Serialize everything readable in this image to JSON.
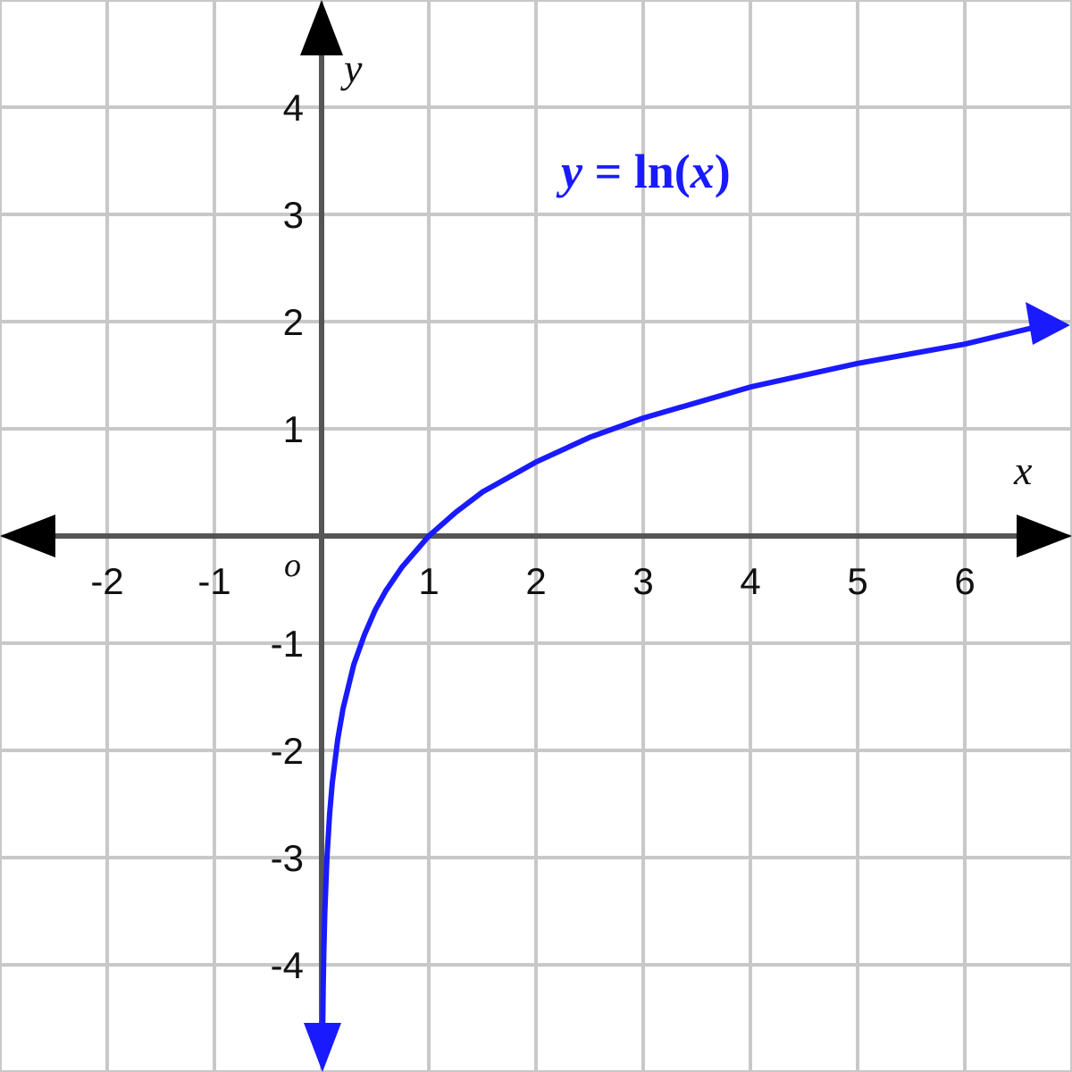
{
  "chart_data": {
    "type": "line",
    "xlim": [
      -3,
      7
    ],
    "ylim": [
      -5,
      5
    ],
    "grid": true,
    "x_ticks": [
      "-2",
      "-1",
      "1",
      "2",
      "3",
      "4",
      "5",
      "6"
    ],
    "x_tick_values": [
      -2,
      -1,
      1,
      2,
      3,
      4,
      5,
      6
    ],
    "y_ticks": [
      "4",
      "3",
      "2",
      "1",
      "-1",
      "-2",
      "-3",
      "-4"
    ],
    "y_tick_values": [
      4,
      3,
      2,
      1,
      -1,
      -2,
      -3,
      -4
    ],
    "origin_label": "o",
    "xlabel": "x",
    "ylabel": "y",
    "annotation": {
      "y": "y",
      "eq": " = ln(",
      "x": "x",
      "close": ")"
    },
    "colors": {
      "curve": "#1a1aff",
      "axes": "#555555",
      "grid": "#c8c8c8"
    },
    "series": [
      {
        "x": [
          0.0067,
          0.01,
          0.015,
          0.02,
          0.03,
          0.05,
          0.075,
          0.1,
          0.15,
          0.2,
          0.3,
          0.4,
          0.5,
          0.6,
          0.75,
          1,
          1.25,
          1.5,
          2,
          2.5,
          3,
          4,
          5,
          6,
          7
        ],
        "y": [
          -5.0,
          -4.61,
          -4.2,
          -3.91,
          -3.51,
          -3.0,
          -2.59,
          -2.3,
          -1.9,
          -1.61,
          -1.2,
          -0.92,
          -0.69,
          -0.51,
          -0.29,
          0,
          0.22,
          0.41,
          0.69,
          0.92,
          1.1,
          1.39,
          1.61,
          1.79,
          1.95
        ]
      }
    ]
  }
}
